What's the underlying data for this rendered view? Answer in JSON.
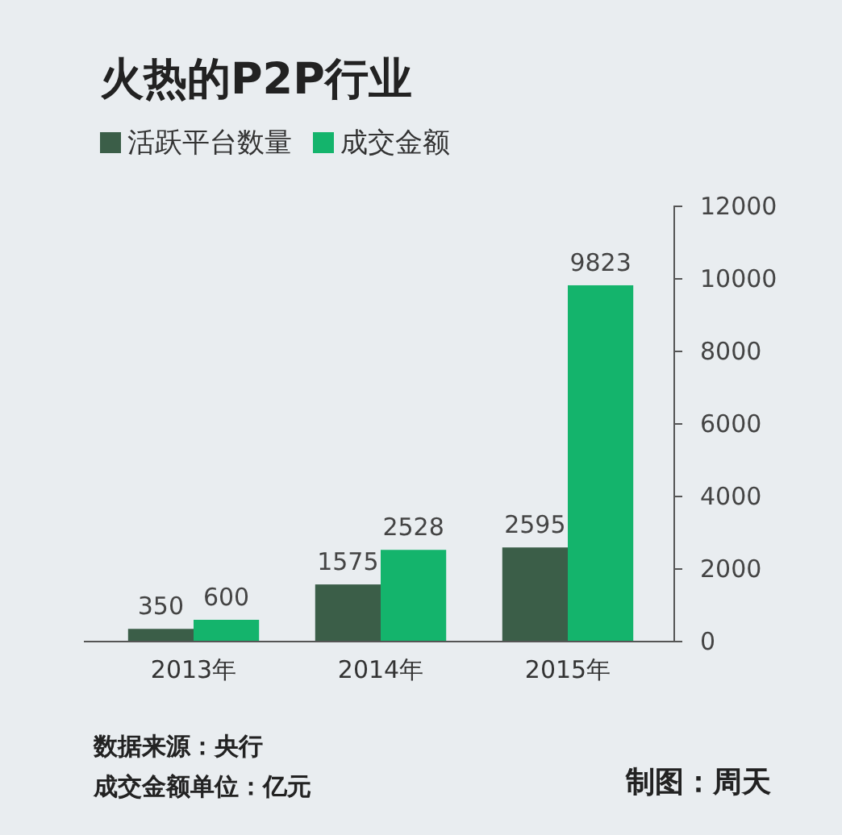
{
  "chart_data": {
    "type": "bar",
    "title": "火热的P2P行业",
    "categories": [
      "2013年",
      "2014年",
      "2015年"
    ],
    "series": [
      {
        "name": "活跃平台数量",
        "color": "#3b5e48",
        "values": [
          350,
          1575,
          2595
        ]
      },
      {
        "name": "成交金额",
        "color": "#14b46c",
        "values": [
          600,
          2528,
          9823
        ]
      }
    ],
    "ylim": [
      0,
      12000
    ],
    "yticks": [
      0,
      2000,
      4000,
      6000,
      8000,
      10000,
      12000
    ],
    "data_labels": true,
    "legend": "top left",
    "grid": false,
    "annotations": [
      "数据来源：央行",
      "成交金额单位：亿元",
      "制图：周天"
    ]
  }
}
